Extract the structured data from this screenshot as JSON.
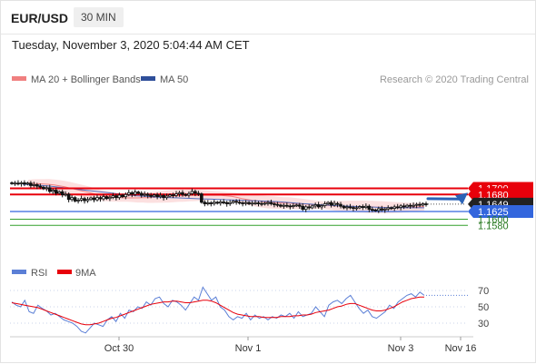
{
  "header": {
    "symbol": "EUR/USD",
    "timeframe": "30 MIN",
    "timestamp": "Tuesday, November 3, 2020 5:04:44 AM CET"
  },
  "legend": {
    "ma20_bollinger": "MA 20 + Bollinger Bands",
    "ma50": "MA 50",
    "credit": "Research © 2020 Trading Central"
  },
  "colors": {
    "candle": "#111111",
    "ma20": "#f08080",
    "bollinger": "#fbd6d6",
    "ma50": "#5470c0",
    "resistance": "#e8000b",
    "pivot_current": "#222222",
    "support_1": "#3366dd",
    "support_2": "#33a02c",
    "arrow": "#2b63b7",
    "rsi": "#5b7fd6",
    "rsi_ma": "#e8000b"
  },
  "chart_data": {
    "type": "candlestick",
    "x_tick_labels": [
      "Oct 30",
      "Nov 1",
      "Nov 3",
      "Nov 16"
    ],
    "price_levels": [
      {
        "name": "resistance",
        "value": "1.1700"
      },
      {
        "name": "resistance",
        "value": "1.1680"
      },
      {
        "name": "last",
        "value": "1.1649"
      },
      {
        "name": "pivot",
        "value": "1.1625"
      },
      {
        "name": "support",
        "value": "1.1600"
      },
      {
        "name": "support",
        "value": "1.1580"
      }
    ],
    "expected_path": "up",
    "close": [
      1.1716,
      1.1717,
      1.1715,
      1.1718,
      1.1714,
      1.1717,
      1.1709,
      1.1712,
      1.1707,
      1.1704,
      1.1699,
      1.1702,
      1.169,
      1.1694,
      1.1684,
      1.1689,
      1.1679,
      1.1681,
      1.1664,
      1.167,
      1.1659,
      1.1662,
      1.1667,
      1.166,
      1.1664,
      1.1669,
      1.1663,
      1.167,
      1.1666,
      1.1673,
      1.1667,
      1.1671,
      1.1676,
      1.167,
      1.1678,
      1.1673,
      1.168,
      1.1686,
      1.1681,
      1.1688,
      1.1684,
      1.1678,
      1.1681,
      1.1677,
      1.1675,
      1.1679,
      1.1673,
      1.1677,
      1.167,
      1.1675,
      1.1679,
      1.1677,
      1.1682,
      1.1686,
      1.168,
      1.1678,
      1.1683,
      1.169,
      1.1684,
      1.1682,
      1.1655,
      1.165,
      1.1653,
      1.1651,
      1.1655,
      1.1652,
      1.1656,
      1.1654,
      1.165,
      1.1654,
      1.1658,
      1.1655,
      1.1653,
      1.1651,
      1.1654,
      1.165,
      1.1652,
      1.1653,
      1.1651,
      1.1649,
      1.1652,
      1.1654,
      1.165,
      1.1648,
      1.1646,
      1.1642,
      1.1645,
      1.1643,
      1.1641,
      1.1644,
      1.1646,
      1.1642,
      1.1632,
      1.164,
      1.1637,
      1.1643,
      1.1647,
      1.164,
      1.1644,
      1.165,
      1.1654,
      1.1646,
      1.1651,
      1.1648,
      1.1642,
      1.1637,
      1.164,
      1.1638,
      1.1635,
      1.1637,
      1.1641,
      1.1638,
      1.1642,
      1.1632,
      1.163,
      1.1628,
      1.1634,
      1.163,
      1.1633,
      1.1637,
      1.1635,
      1.164,
      1.1638,
      1.1643,
      1.164,
      1.1645,
      1.1642,
      1.1645,
      1.1648,
      1.1646,
      1.165,
      1.1649
    ],
    "ma20": [
      1.1716,
      1.1716,
      1.1715,
      1.1714,
      1.1713,
      1.1711,
      1.1708,
      1.1705,
      1.1701,
      1.1697,
      1.1693,
      1.1689,
      1.1685,
      1.1681,
      1.1677,
      1.1675,
      1.1673,
      1.1671,
      1.167,
      1.1669,
      1.1669,
      1.1669,
      1.167,
      1.167,
      1.1671,
      1.1672,
      1.1673,
      1.1674,
      1.1675,
      1.1676,
      1.1676,
      1.1677,
      1.1677,
      1.1677,
      1.1677,
      1.1677,
      1.1677,
      1.1677,
      1.1676,
      1.1674,
      1.1671,
      1.1667,
      1.1664,
      1.1661,
      1.1659,
      1.1657,
      1.1655,
      1.1654,
      1.1653,
      1.1652,
      1.1652,
      1.1651,
      1.165,
      1.1649,
      1.1648,
      1.1647,
      1.1646,
      1.1645,
      1.1644,
      1.1643,
      1.1643,
      1.1642,
      1.1642,
      1.1641,
      1.1641,
      1.164,
      1.164,
      1.1639,
      1.1639,
      1.1638,
      1.1638,
      1.1638,
      1.1638,
      1.1638,
      1.1639,
      1.164,
      1.1641
    ],
    "ma50": [
      1.1713,
      1.1712,
      1.171,
      1.1708,
      1.1705,
      1.1702,
      1.1699,
      1.1696,
      1.1693,
      1.169,
      1.1687,
      1.1684,
      1.1681,
      1.1678,
      1.1676,
      1.1674,
      1.1672,
      1.1671,
      1.167,
      1.1669,
      1.1668,
      1.1667,
      1.1666,
      1.1665,
      1.1664,
      1.1663,
      1.1662,
      1.1661,
      1.166,
      1.1659,
      1.1658,
      1.1657,
      1.1655,
      1.1653,
      1.1651,
      1.1649,
      1.1647,
      1.1646,
      1.1644,
      1.1643,
      1.1642,
      1.1641,
      1.164,
      1.1639,
      1.1638,
      1.1638,
      1.1637,
      1.1637,
      1.1637,
      1.1637
    ],
    "rsi_legend": "RSI",
    "rsi_ma_legend": "9MA",
    "rsi_ticks": [
      "70",
      "50",
      "30"
    ],
    "rsi": [
      56,
      52,
      50,
      58,
      44,
      42,
      52,
      48,
      45,
      40,
      42,
      38,
      34,
      32,
      30,
      26,
      20,
      18,
      24,
      30,
      28,
      26,
      34,
      38,
      32,
      42,
      36,
      46,
      44,
      50,
      48,
      56,
      52,
      60,
      62,
      54,
      50,
      58,
      56,
      52,
      46,
      54,
      62,
      58,
      74,
      66,
      58,
      62,
      50,
      46,
      38,
      34,
      38,
      36,
      42,
      34,
      40,
      36,
      38,
      34,
      38,
      36,
      40,
      38,
      42,
      36,
      44,
      38,
      40,
      42,
      50,
      44,
      38,
      52,
      56,
      58,
      54,
      60,
      64,
      56,
      48,
      42,
      46,
      38,
      36,
      40,
      44,
      52,
      48,
      56,
      60,
      64,
      66,
      62,
      68,
      64
    ],
    "rsi_ma": [
      55,
      54,
      53,
      52,
      51,
      50,
      49,
      47,
      45,
      43,
      41,
      39,
      37,
      35,
      33,
      31,
      29,
      28,
      28,
      29,
      30,
      32,
      34,
      36,
      37,
      39,
      41,
      43,
      45,
      47,
      49,
      51,
      53,
      54,
      55,
      56,
      56,
      57,
      57,
      56,
      55,
      55,
      56,
      57,
      58,
      58,
      57,
      55,
      52,
      49,
      46,
      43,
      41,
      40,
      39,
      38,
      38,
      38,
      37,
      37,
      37,
      37,
      38,
      38,
      38,
      39,
      39,
      40,
      40,
      41,
      43,
      44,
      45,
      46,
      48,
      50,
      51,
      53,
      54,
      54,
      52,
      50,
      48,
      46,
      45,
      45,
      46,
      48,
      50,
      53,
      56,
      58,
      60,
      61,
      62,
      62
    ]
  }
}
